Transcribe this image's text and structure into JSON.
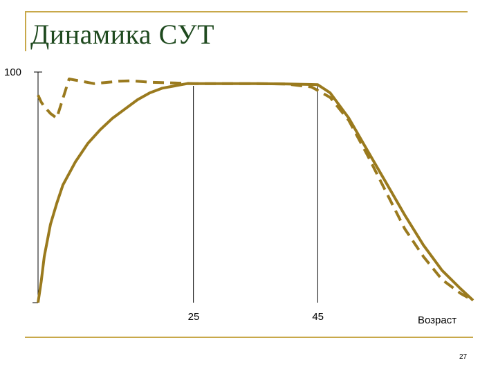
{
  "slide": {
    "title": "Динамика СУТ",
    "page_number": "27"
  },
  "colors": {
    "accent": "#c8a84a",
    "series": "#9a7a1e",
    "title": "#1f4a1f",
    "axis": "#000000"
  },
  "chart_data": {
    "type": "line",
    "title": "Динамика СУТ",
    "xlabel": "Возраст",
    "ylabel": "",
    "xlim": [
      0,
      70
    ],
    "ylim": [
      0,
      100
    ],
    "y_tick_labels": [
      "100"
    ],
    "x_tick_labels": [
      "25",
      "45"
    ],
    "x_ticks": [
      25,
      45
    ],
    "reference_lines_x": [
      25,
      45
    ],
    "grid": false,
    "legend": "none",
    "series": [
      {
        "style": "solid",
        "x": [
          0,
          0.5,
          1,
          2,
          3,
          4,
          6,
          8,
          10,
          12,
          14,
          16,
          18,
          20,
          22,
          24,
          25,
          30,
          35,
          40,
          44,
          45,
          47,
          50,
          53,
          56,
          59,
          62,
          65,
          68,
          70
        ],
        "y": [
          0,
          9,
          20,
          34,
          43,
          51,
          61,
          69,
          75,
          80,
          84,
          88,
          91,
          93,
          94,
          95,
          95,
          95,
          95,
          94.8,
          94.6,
          94.5,
          91,
          80,
          66,
          52,
          38,
          25,
          14,
          6,
          1
        ]
      },
      {
        "style": "dashed",
        "x": [
          0,
          0.5,
          1,
          2,
          3,
          5,
          7,
          9,
          11,
          13,
          15,
          18,
          20,
          25,
          30,
          35,
          40,
          44,
          45,
          47,
          50,
          53,
          56,
          59,
          62,
          65,
          68,
          70
        ],
        "y": [
          90,
          87,
          85,
          82,
          80,
          97,
          96,
          95,
          95.5,
          96,
          96.2,
          95.6,
          95.4,
          95,
          95,
          95,
          94.8,
          93.5,
          92,
          89,
          79,
          64,
          48,
          32,
          20,
          10,
          4,
          1
        ]
      }
    ]
  }
}
